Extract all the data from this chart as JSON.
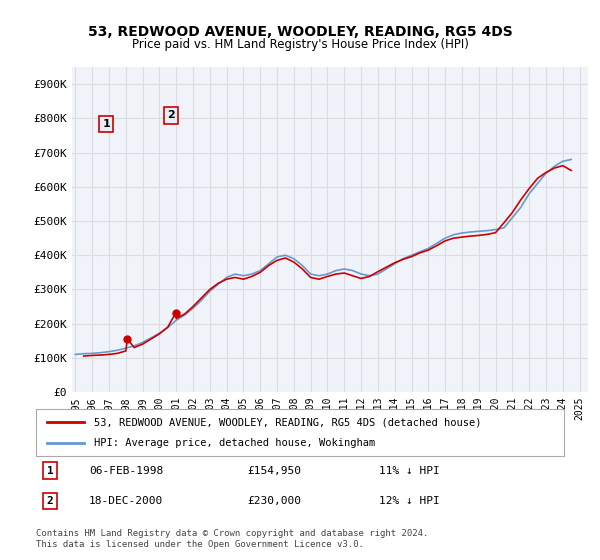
{
  "title": "53, REDWOOD AVENUE, WOODLEY, READING, RG5 4DS",
  "subtitle": "Price paid vs. HM Land Registry's House Price Index (HPI)",
  "ylabel_ticks": [
    "£0",
    "£100K",
    "£200K",
    "£300K",
    "£400K",
    "£500K",
    "£600K",
    "£700K",
    "£800K",
    "£900K"
  ],
  "ytick_values": [
    0,
    100000,
    200000,
    300000,
    400000,
    500000,
    600000,
    700000,
    800000,
    900000
  ],
  "ylim": [
    0,
    950000
  ],
  "sale1_year": 1998.1,
  "sale1_price": 154950,
  "sale1_label": "1",
  "sale1_date": "06-FEB-1998",
  "sale1_amount": "£154,950",
  "sale1_hpi": "11% ↓ HPI",
  "sale2_year": 2000.96,
  "sale2_price": 230000,
  "sale2_label": "2",
  "sale2_date": "18-DEC-2000",
  "sale2_amount": "£230,000",
  "sale2_hpi": "12% ↓ HPI",
  "line1_color": "#cc0000",
  "line2_color": "#6699cc",
  "background_color": "#ffffff",
  "grid_color": "#dddddd",
  "legend1_text": "53, REDWOOD AVENUE, WOODLEY, READING, RG5 4DS (detached house)",
  "legend2_text": "HPI: Average price, detached house, Wokingham",
  "footer": "Contains HM Land Registry data © Crown copyright and database right 2024.\nThis data is licensed under the Open Government Licence v3.0.",
  "hpi_years": [
    1995,
    1995.5,
    1996,
    1996.5,
    1997,
    1997.5,
    1998,
    1998.5,
    1999,
    1999.5,
    2000,
    2000.5,
    2001,
    2001.5,
    2002,
    2002.5,
    2003,
    2003.5,
    2004,
    2004.5,
    2005,
    2005.5,
    2006,
    2006.5,
    2007,
    2007.5,
    2008,
    2008.5,
    2009,
    2009.5,
    2010,
    2010.5,
    2011,
    2011.5,
    2012,
    2012.5,
    2013,
    2013.5,
    2014,
    2014.5,
    2015,
    2015.5,
    2016,
    2016.5,
    2017,
    2017.5,
    2018,
    2018.5,
    2019,
    2019.5,
    2020,
    2020.5,
    2021,
    2021.5,
    2022,
    2022.5,
    2023,
    2023.5,
    2024,
    2024.5
  ],
  "hpi_values": [
    110000,
    112000,
    113000,
    115000,
    118000,
    122000,
    128000,
    135000,
    145000,
    158000,
    172000,
    188000,
    210000,
    225000,
    245000,
    268000,
    295000,
    315000,
    335000,
    345000,
    340000,
    345000,
    355000,
    375000,
    395000,
    400000,
    390000,
    370000,
    345000,
    340000,
    345000,
    355000,
    360000,
    355000,
    345000,
    340000,
    345000,
    360000,
    375000,
    390000,
    400000,
    410000,
    420000,
    435000,
    450000,
    460000,
    465000,
    468000,
    470000,
    472000,
    475000,
    480000,
    510000,
    540000,
    580000,
    610000,
    640000,
    660000,
    675000,
    680000
  ],
  "price_years": [
    1995.5,
    1996,
    1996.5,
    1997,
    1997.5,
    1998,
    1998.1,
    1998.5,
    1999,
    1999.5,
    2000,
    2000.5,
    2000.96,
    2001,
    2001.5,
    2002,
    2002.5,
    2003,
    2003.5,
    2004,
    2004.5,
    2005,
    2005.5,
    2006,
    2006.5,
    2007,
    2007.5,
    2008,
    2008.5,
    2009,
    2009.5,
    2010,
    2010.5,
    2011,
    2011.5,
    2012,
    2012.5,
    2013,
    2013.5,
    2014,
    2014.5,
    2015,
    2015.5,
    2016,
    2016.5,
    2017,
    2017.5,
    2018,
    2018.5,
    2019,
    2019.5,
    2020,
    2020.5,
    2021,
    2021.5,
    2022,
    2022.5,
    2023,
    2023.5,
    2024,
    2024.5
  ],
  "price_values": [
    105000,
    107000,
    108000,
    110000,
    113000,
    120000,
    154950,
    130000,
    140000,
    155000,
    170000,
    190000,
    230000,
    215000,
    228000,
    250000,
    275000,
    300000,
    318000,
    330000,
    335000,
    330000,
    338000,
    350000,
    370000,
    385000,
    392000,
    380000,
    360000,
    335000,
    330000,
    338000,
    345000,
    348000,
    340000,
    332000,
    338000,
    352000,
    365000,
    378000,
    388000,
    396000,
    407000,
    415000,
    428000,
    442000,
    450000,
    453000,
    456000,
    458000,
    461000,
    466000,
    495000,
    525000,
    562000,
    595000,
    625000,
    642000,
    655000,
    662000,
    648000
  ],
  "xtick_years": [
    1995,
    1996,
    1997,
    1998,
    1999,
    2000,
    2001,
    2002,
    2003,
    2004,
    2005,
    2006,
    2007,
    2008,
    2009,
    2010,
    2011,
    2012,
    2013,
    2014,
    2015,
    2016,
    2017,
    2018,
    2019,
    2020,
    2021,
    2022,
    2023,
    2024,
    2025
  ]
}
